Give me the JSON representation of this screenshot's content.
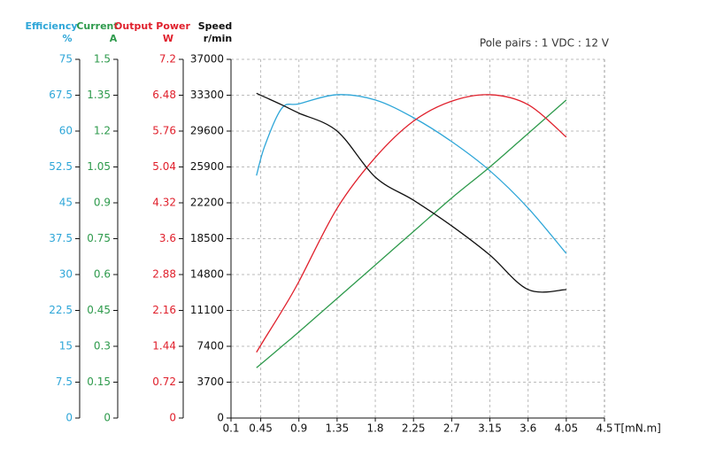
{
  "chart_data": {
    "type": "line",
    "annotation": "Pole pairs : 1   VDC : 12 V",
    "xlabel": "T[mN.m]",
    "xlim": [
      0.1,
      4.5
    ],
    "xticks": [
      0.1,
      0.45,
      0.9,
      1.35,
      1.8,
      2.25,
      2.7,
      3.15,
      3.6,
      4.05,
      4.5
    ],
    "grid": true,
    "x": [
      0.4,
      0.5,
      0.7,
      0.9,
      1.35,
      1.8,
      2.25,
      2.7,
      3.15,
      3.6,
      4.05
    ],
    "y_axes": [
      {
        "title": "Efficiency",
        "unit": "%",
        "color": "#2ea6d8",
        "ylim": [
          0,
          75
        ],
        "yticks": [
          0,
          7.5,
          15,
          22.5,
          30,
          37.5,
          45,
          52.5,
          60,
          67.5,
          75
        ]
      },
      {
        "title": "Current",
        "unit": "A",
        "color": "#2e9a4c",
        "ylim": [
          0,
          1.5
        ],
        "yticks": [
          0,
          0.15,
          0.3,
          0.45,
          0.6,
          0.75,
          0.9,
          1.05,
          1.2,
          1.35,
          1.5
        ]
      },
      {
        "title": "Output Power",
        "unit": "W",
        "color": "#e0202c",
        "ylim": [
          0,
          7.2
        ],
        "yticks": [
          0,
          0.72,
          1.44,
          2.16,
          2.88,
          3.6,
          4.32,
          5.04,
          5.76,
          6.48,
          7.2
        ]
      },
      {
        "title": "Speed",
        "unit": "r/min",
        "color": "#111111",
        "ylim": [
          0,
          37000
        ],
        "yticks": [
          0,
          3700,
          7400,
          11100,
          14800,
          18500,
          22200,
          25900,
          29600,
          33300,
          37000
        ]
      }
    ],
    "series": [
      {
        "color": "#2ea6d8",
        "axis": 0,
        "values": [
          50.7,
          57,
          64.8,
          65.7,
          67.6,
          66.5,
          62.8,
          57.8,
          51.7,
          43.9,
          34.4
        ]
      },
      {
        "color": "#2e9a4c",
        "axis": 1,
        "values": [
          0.21,
          0.24,
          0.3,
          0.36,
          0.5,
          0.64,
          0.78,
          0.92,
          1.05,
          1.19,
          1.33
        ]
      },
      {
        "color": "#e0202c",
        "axis": 2,
        "values": [
          1.32,
          1.6,
          2.15,
          2.74,
          4.21,
          5.23,
          5.96,
          6.36,
          6.49,
          6.29,
          5.64
        ]
      },
      {
        "color": "#111111",
        "axis": 3,
        "values": [
          33500,
          33100,
          32300,
          31450,
          29600,
          24850,
          22470,
          19820,
          16810,
          13250,
          13250
        ]
      }
    ]
  }
}
